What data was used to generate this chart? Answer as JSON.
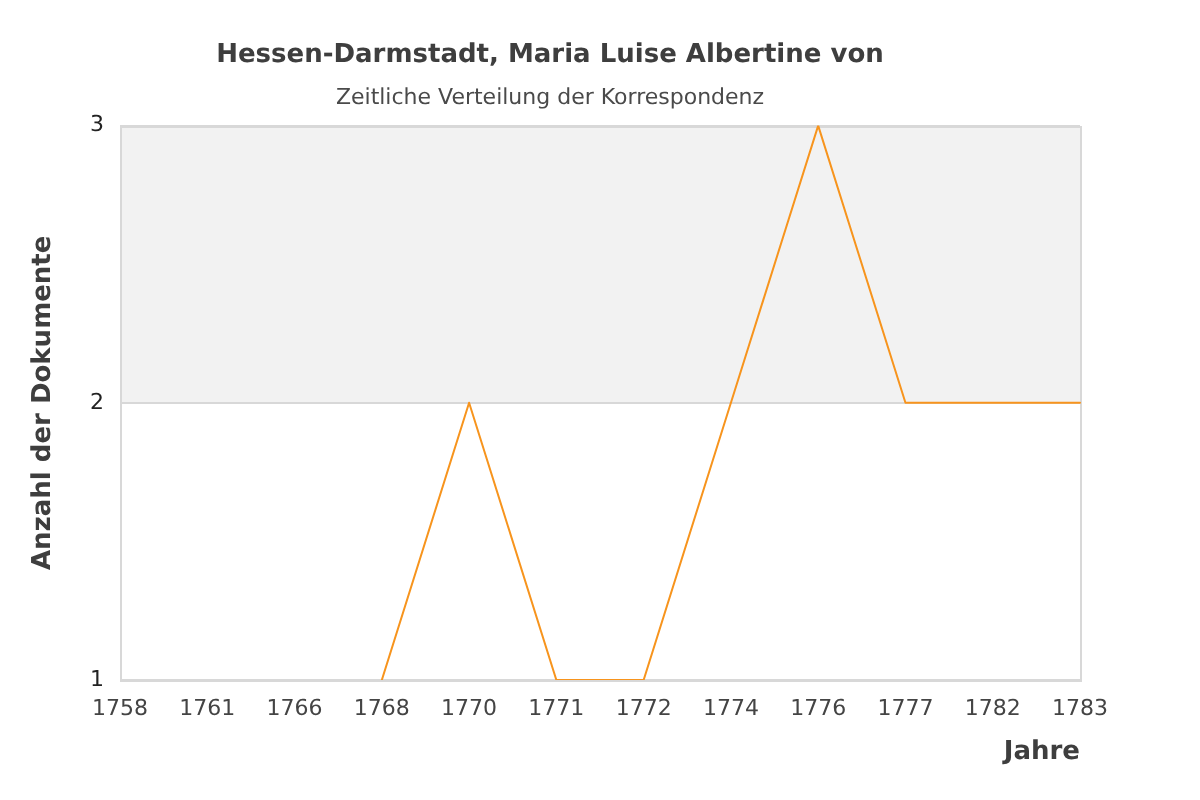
{
  "chart_data": {
    "type": "line",
    "title": "Hessen-Darmstadt, Maria Luise Albertine von",
    "subtitle": "Zeitliche Verteilung der Korrespondenz",
    "xlabel": "Jahre",
    "ylabel": "Anzahl der Dokumente",
    "categories": [
      "1758",
      "1761",
      "1766",
      "1768",
      "1770",
      "1771",
      "1772",
      "1774",
      "1776",
      "1777",
      "1782",
      "1783"
    ],
    "series": [
      {
        "color": "#f7941d",
        "values": [
          null,
          null,
          null,
          1,
          2,
          1,
          1,
          2,
          3,
          2,
          2,
          2
        ]
      }
    ],
    "ylim": [
      1,
      3
    ],
    "yticks": [
      1,
      2,
      3
    ],
    "grid": "y",
    "legend": false,
    "marker": "none",
    "line_style": "solid",
    "bands": [
      {
        "axis": "y",
        "from": 2,
        "to": 3,
        "color": "#f2f2f2"
      }
    ]
  }
}
